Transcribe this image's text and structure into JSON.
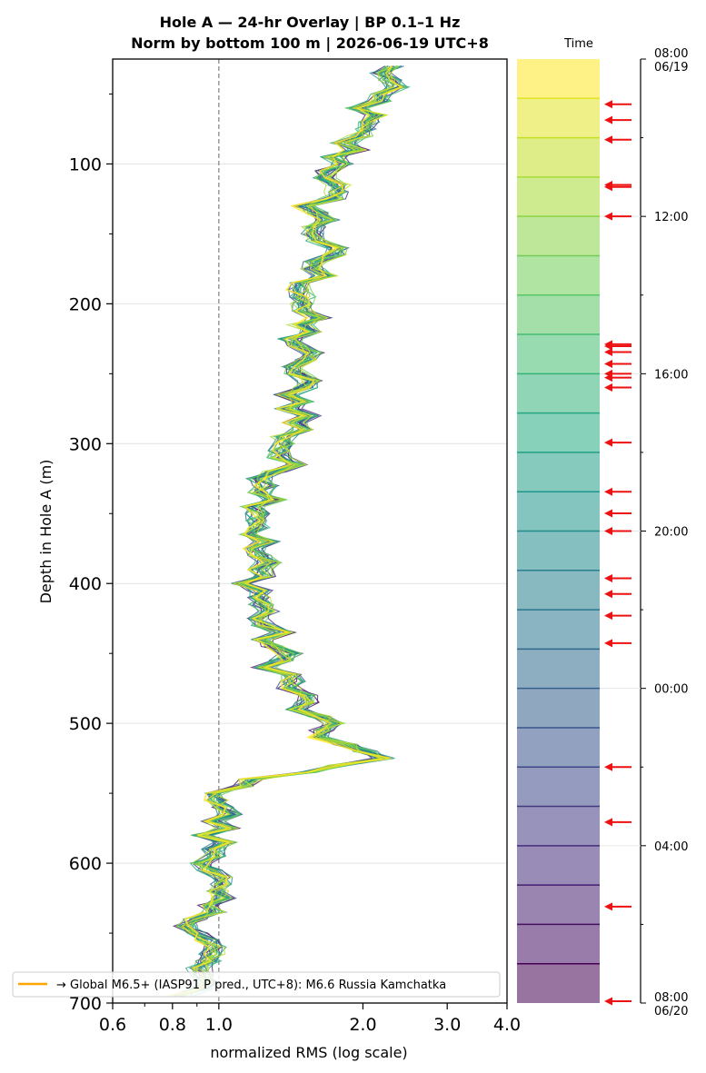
{
  "chart_data": {
    "type": "line",
    "title_line1": "Hole A — 24-hr Overlay  |  BP 0.1–1 Hz",
    "title_line2": "Norm by bottom 100 m  |  2026-06-19 UTC+8",
    "xlabel": "normalized RMS  (log scale)",
    "ylabel": "Depth in Hole A (m)",
    "x_scale": "log",
    "xlim": [
      0.6,
      4.0
    ],
    "ylim": [
      700,
      25
    ],
    "y_inverted": true,
    "x_ticks": [
      0.6,
      0.8,
      1.0,
      2.0,
      3.0,
      4.0
    ],
    "x_tick_labels": [
      "0.6",
      "0.8",
      "1.0",
      "2.0",
      "3.0",
      "4.0"
    ],
    "y_ticks": [
      100,
      200,
      300,
      400,
      500,
      600,
      700
    ],
    "y_tick_labels": [
      "100",
      "200",
      "300",
      "400",
      "500",
      "600",
      "700"
    ],
    "grid": "horizontal",
    "reference_line": {
      "x": 1.0,
      "style": "dashed",
      "color": "#808080"
    },
    "depth_profile_centerline": {
      "depth": [
        30,
        60,
        80,
        100,
        130,
        160,
        190,
        220,
        250,
        280,
        310,
        340,
        370,
        400,
        430,
        460,
        490,
        510,
        525,
        545,
        560,
        580,
        600,
        620,
        640,
        660,
        680,
        695
      ],
      "rms": [
        2.3,
        2.05,
        1.9,
        1.8,
        1.6,
        1.65,
        1.55,
        1.48,
        1.45,
        1.5,
        1.35,
        1.28,
        1.2,
        1.2,
        1.25,
        1.35,
        1.5,
        1.7,
        2.1,
        1.05,
        1.02,
        0.97,
        1.0,
        0.95,
        0.92,
        0.95,
        0.9,
        0.88
      ]
    },
    "series_count": 24,
    "colormap": "viridis",
    "colorbar": {
      "label": "Time",
      "tick_labels": [
        {
          "hour": 0,
          "line1": "08:00",
          "line2": "06/19"
        },
        {
          "hour": 4,
          "line1": "12:00",
          "line2": ""
        },
        {
          "hour": 8,
          "line1": "16:00",
          "line2": ""
        },
        {
          "hour": 12,
          "line1": "20:00",
          "line2": ""
        },
        {
          "hour": 16,
          "line1": "00:00",
          "line2": ""
        },
        {
          "hour": 20,
          "line1": "04:00",
          "line2": ""
        },
        {
          "hour": 24,
          "line1": "08:00",
          "line2": "06/20"
        }
      ],
      "bands": 24
    },
    "event_markers_hours": [
      1.15,
      1.55,
      2.05,
      3.2,
      3.25,
      4.0,
      7.25,
      7.3,
      7.45,
      7.75,
      8.0,
      8.1,
      8.35,
      9.75,
      11.0,
      11.55,
      12.0,
      13.2,
      13.6,
      14.15,
      14.85,
      18.0,
      19.4,
      21.55,
      24.0
    ],
    "event_marker_color": "#ee1111",
    "legend": {
      "label": "→ Global M6.5+ (IASP91 P pred., UTC+8): M6.6 Russia Kamchatka",
      "color": "#ffa500",
      "position": "lower-left"
    }
  }
}
